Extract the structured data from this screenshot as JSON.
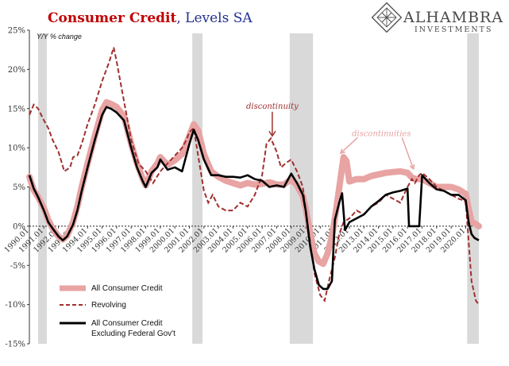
{
  "header": {
    "title_bold": "Consumer Credit",
    "title_rest": ", Levels SA",
    "title_bold_color": "#c00000",
    "title_rest_color": "#1f2f8f"
  },
  "logo": {
    "icon": "diamond-lattice-icon",
    "name": "ALHAMBRA",
    "tagline": "INVESTMENTS"
  },
  "chart_data": {
    "type": "line",
    "unit_label": "Y/Y % change",
    "ylim": [
      -15,
      25
    ],
    "y_ticks": [
      "25%",
      "20%",
      "15%",
      "10%",
      "5%",
      "0%",
      "-5%",
      "-10%",
      "-15%"
    ],
    "y_tick_values": [
      25,
      20,
      15,
      10,
      5,
      0,
      -5,
      -10,
      -15
    ],
    "xlim": [
      1990.0,
      2020.9
    ],
    "x_ticks": [
      "1990.01",
      "1991.01",
      "1992.01",
      "1993.01",
      "1994.01",
      "1995.01",
      "1996.01",
      "1997.01",
      "1998.01",
      "1999.01",
      "2000.01",
      "2001.01",
      "2002.01",
      "2003.01",
      "2004.01",
      "2005.01",
      "2006.01",
      "2007.01",
      "2008.01",
      "2009.01",
      "2010.01",
      "2011.01",
      "2012.01",
      "2013.01",
      "2014.01",
      "2015.01",
      "2016.01",
      "2017.01",
      "2018.01",
      "2019.01",
      "2020.01"
    ],
    "x_tick_values": [
      1990,
      1991,
      1992,
      1993,
      1994,
      1995,
      1996,
      1997,
      1998,
      1999,
      2000,
      2001,
      2002,
      2003,
      2004,
      2005,
      2006,
      2007,
      2008,
      2009,
      2010,
      2011,
      2012,
      2013,
      2014,
      2015,
      2016,
      2017,
      2018,
      2019,
      2020
    ],
    "recessions": [
      [
        1990.6,
        1991.2
      ],
      [
        2001.2,
        2001.9
      ],
      [
        2007.9,
        2009.5
      ],
      [
        2020.1,
        2020.9
      ]
    ],
    "legend_position": "bottom-left",
    "annotations": [
      {
        "text": "discontinuity",
        "x": 2006.7,
        "y": 15.0,
        "arrow_to": [
          2006.7,
          11.5
        ]
      },
      {
        "text": "discontinuities",
        "x": 2014.2,
        "y": 11.5,
        "arrow_to": [
          [
            2011.4,
            9.3
          ],
          [
            2016.4,
            7.3
          ]
        ]
      }
    ],
    "series": [
      {
        "name": "All Consumer Credit",
        "color": "#e8a3a3",
        "style": "thick",
        "points": [
          [
            1990.0,
            6.3
          ],
          [
            1990.3,
            4.6
          ],
          [
            1990.6,
            3.7
          ],
          [
            1991.0,
            2.3
          ],
          [
            1991.3,
            0.8
          ],
          [
            1991.6,
            -0.3
          ],
          [
            1992.0,
            -1.3
          ],
          [
            1992.3,
            -1.7
          ],
          [
            1992.6,
            -1.2
          ],
          [
            1993.0,
            0.5
          ],
          [
            1993.3,
            2.5
          ],
          [
            1993.6,
            5.0
          ],
          [
            1994.0,
            8.0
          ],
          [
            1994.5,
            11.5
          ],
          [
            1995.0,
            14.8
          ],
          [
            1995.3,
            15.8
          ],
          [
            1995.6,
            15.6
          ],
          [
            1996.0,
            15.2
          ],
          [
            1996.5,
            14.0
          ],
          [
            1997.0,
            10.5
          ],
          [
            1997.4,
            8.0
          ],
          [
            1997.8,
            6.0
          ],
          [
            1998.0,
            5.2
          ],
          [
            1998.4,
            7.0
          ],
          [
            1998.8,
            8.0
          ],
          [
            1999.0,
            8.8
          ],
          [
            1999.5,
            7.8
          ],
          [
            2000.0,
            8.4
          ],
          [
            2000.5,
            9.2
          ],
          [
            2001.0,
            11.5
          ],
          [
            2001.3,
            13.0
          ],
          [
            2001.6,
            12.2
          ],
          [
            2002.0,
            9.2
          ],
          [
            2002.5,
            7.0
          ],
          [
            2003.0,
            6.3
          ],
          [
            2003.5,
            5.8
          ],
          [
            2004.0,
            5.5
          ],
          [
            2004.5,
            5.2
          ],
          [
            2005.0,
            5.5
          ],
          [
            2005.5,
            5.3
          ],
          [
            2006.0,
            5.4
          ],
          [
            2006.5,
            5.6
          ],
          [
            2007.0,
            5.3
          ],
          [
            2007.5,
            5.3
          ],
          [
            2008.0,
            6.0
          ],
          [
            2008.4,
            5.2
          ],
          [
            2008.8,
            3.8
          ],
          [
            2009.0,
            2.3
          ],
          [
            2009.3,
            -0.8
          ],
          [
            2009.6,
            -3.5
          ],
          [
            2009.9,
            -4.5
          ],
          [
            2010.2,
            -4.8
          ],
          [
            2010.5,
            -3.5
          ],
          [
            2010.8,
            -1.3
          ],
          [
            2011.0,
            1.0
          ],
          [
            2011.2,
            3.5
          ],
          [
            2011.4,
            6.2
          ],
          [
            2011.6,
            8.8
          ],
          [
            2011.8,
            8.3
          ],
          [
            2012.0,
            5.7
          ],
          [
            2012.5,
            6.0
          ],
          [
            2013.0,
            6.0
          ],
          [
            2013.5,
            6.4
          ],
          [
            2014.0,
            6.6
          ],
          [
            2014.5,
            6.8
          ],
          [
            2015.0,
            6.9
          ],
          [
            2015.5,
            7.0
          ],
          [
            2016.0,
            6.8
          ],
          [
            2016.3,
            6.2
          ],
          [
            2016.6,
            6.0
          ],
          [
            2017.0,
            6.0
          ],
          [
            2017.5,
            5.5
          ],
          [
            2018.0,
            5.0
          ],
          [
            2018.5,
            5.0
          ],
          [
            2019.0,
            5.0
          ],
          [
            2019.5,
            4.7
          ],
          [
            2020.0,
            4.1
          ],
          [
            2020.2,
            2.2
          ],
          [
            2020.4,
            0.6
          ],
          [
            2020.9,
            0.0
          ]
        ]
      },
      {
        "name": "Revolving",
        "color": "#a03030",
        "style": "dashed",
        "points": [
          [
            1990.0,
            14.2
          ],
          [
            1990.3,
            15.5
          ],
          [
            1990.6,
            15.0
          ],
          [
            1991.0,
            13.5
          ],
          [
            1991.3,
            12.5
          ],
          [
            1991.6,
            11.0
          ],
          [
            1992.0,
            9.5
          ],
          [
            1992.4,
            7.0
          ],
          [
            1992.8,
            7.5
          ],
          [
            1993.0,
            8.8
          ],
          [
            1993.3,
            9.0
          ],
          [
            1993.6,
            10.5
          ],
          [
            1994.0,
            13.0
          ],
          [
            1994.5,
            15.5
          ],
          [
            1995.0,
            18.5
          ],
          [
            1995.5,
            21.0
          ],
          [
            1995.8,
            22.8
          ],
          [
            1996.0,
            21.0
          ],
          [
            1996.4,
            17.0
          ],
          [
            1996.8,
            13.0
          ],
          [
            1997.0,
            11.0
          ],
          [
            1997.5,
            8.0
          ],
          [
            1998.0,
            7.0
          ],
          [
            1998.5,
            5.5
          ],
          [
            1999.0,
            7.0
          ],
          [
            1999.5,
            8.0
          ],
          [
            2000.0,
            9.0
          ],
          [
            2000.5,
            10.0
          ],
          [
            2000.8,
            11.0
          ],
          [
            2001.0,
            12.0
          ],
          [
            2001.3,
            12.5
          ],
          [
            2001.6,
            9.0
          ],
          [
            2002.0,
            4.5
          ],
          [
            2002.3,
            3.0
          ],
          [
            2002.6,
            4.0
          ],
          [
            2003.0,
            2.5
          ],
          [
            2003.5,
            2.0
          ],
          [
            2004.0,
            2.0
          ],
          [
            2004.5,
            3.0
          ],
          [
            2005.0,
            2.5
          ],
          [
            2005.5,
            4.0
          ],
          [
            2006.0,
            6.5
          ],
          [
            2006.3,
            10.5
          ],
          [
            2006.6,
            11.2
          ],
          [
            2007.0,
            9.5
          ],
          [
            2007.3,
            7.5
          ],
          [
            2007.6,
            8.0
          ],
          [
            2008.0,
            8.5
          ],
          [
            2008.4,
            7.0
          ],
          [
            2008.8,
            5.0
          ],
          [
            2009.0,
            2.0
          ],
          [
            2009.3,
            -2.0
          ],
          [
            2009.6,
            -6.0
          ],
          [
            2010.0,
            -8.8
          ],
          [
            2010.3,
            -9.5
          ],
          [
            2010.6,
            -7.0
          ],
          [
            2011.0,
            -4.0
          ],
          [
            2011.3,
            -1.0
          ],
          [
            2011.6,
            0.5
          ],
          [
            2012.0,
            1.0
          ],
          [
            2012.5,
            2.0
          ],
          [
            2013.0,
            1.5
          ],
          [
            2013.5,
            2.5
          ],
          [
            2014.0,
            3.0
          ],
          [
            2014.5,
            4.0
          ],
          [
            2015.0,
            3.5
          ],
          [
            2015.5,
            3.0
          ],
          [
            2016.0,
            5.0
          ],
          [
            2016.3,
            6.0
          ],
          [
            2016.5,
            5.5
          ],
          [
            2016.8,
            6.5
          ],
          [
            2017.0,
            6.8
          ],
          [
            2017.5,
            6.0
          ],
          [
            2018.0,
            5.0
          ],
          [
            2018.5,
            4.5
          ],
          [
            2019.0,
            4.0
          ],
          [
            2019.5,
            3.5
          ],
          [
            2020.0,
            3.2
          ],
          [
            2020.2,
            -2.0
          ],
          [
            2020.4,
            -7.0
          ],
          [
            2020.7,
            -9.5
          ],
          [
            2020.9,
            -10.0
          ]
        ]
      },
      {
        "name": "All Consumer Credit Excluding Federal Gov't",
        "color": "#000000",
        "style": "solid",
        "points": [
          [
            1990.0,
            6.5
          ],
          [
            1990.3,
            4.8
          ],
          [
            1990.6,
            3.7
          ],
          [
            1991.0,
            2.0
          ],
          [
            1991.3,
            0.5
          ],
          [
            1991.6,
            -0.3
          ],
          [
            1992.0,
            -1.3
          ],
          [
            1992.3,
            -1.8
          ],
          [
            1992.6,
            -1.3
          ],
          [
            1993.0,
            0.2
          ],
          [
            1993.3,
            2.0
          ],
          [
            1993.6,
            4.5
          ],
          [
            1994.0,
            7.5
          ],
          [
            1994.5,
            11.0
          ],
          [
            1995.0,
            14.2
          ],
          [
            1995.3,
            15.2
          ],
          [
            1995.6,
            15.0
          ],
          [
            1996.0,
            14.5
          ],
          [
            1996.5,
            13.5
          ],
          [
            1997.0,
            10.0
          ],
          [
            1997.4,
            7.5
          ],
          [
            1997.8,
            5.7
          ],
          [
            1998.0,
            5.0
          ],
          [
            1998.4,
            6.8
          ],
          [
            1998.8,
            7.5
          ],
          [
            1999.0,
            8.5
          ],
          [
            1999.5,
            7.2
          ],
          [
            2000.0,
            7.5
          ],
          [
            2000.5,
            7.0
          ],
          [
            2001.0,
            10.5
          ],
          [
            2001.3,
            12.3
          ],
          [
            2001.6,
            11.0
          ],
          [
            2002.0,
            8.5
          ],
          [
            2002.5,
            6.5
          ],
          [
            2003.0,
            6.5
          ],
          [
            2003.5,
            6.3
          ],
          [
            2004.0,
            6.3
          ],
          [
            2004.5,
            6.2
          ],
          [
            2005.0,
            6.5
          ],
          [
            2005.5,
            6.0
          ],
          [
            2006.0,
            5.8
          ],
          [
            2006.5,
            5.0
          ],
          [
            2007.0,
            5.2
          ],
          [
            2007.5,
            5.0
          ],
          [
            2008.0,
            6.7
          ],
          [
            2008.4,
            5.5
          ],
          [
            2008.8,
            4.0
          ],
          [
            2009.0,
            2.0
          ],
          [
            2009.3,
            -2.5
          ],
          [
            2009.6,
            -5.5
          ],
          [
            2009.9,
            -7.5
          ],
          [
            2010.2,
            -8.0
          ],
          [
            2010.5,
            -8.0
          ],
          [
            2010.8,
            -7.0
          ],
          [
            2011.0,
            0.8
          ],
          [
            2011.3,
            3.0
          ],
          [
            2011.5,
            4.2
          ],
          [
            2011.7,
            -0.5
          ],
          [
            2012.0,
            0.5
          ],
          [
            2012.5,
            1.0
          ],
          [
            2013.0,
            1.5
          ],
          [
            2013.5,
            2.5
          ],
          [
            2014.0,
            3.2
          ],
          [
            2014.5,
            4.0
          ],
          [
            2015.0,
            4.3
          ],
          [
            2015.5,
            4.5
          ],
          [
            2016.0,
            4.8
          ],
          [
            2016.1,
            0.0
          ],
          [
            2016.5,
            0.0
          ],
          [
            2016.8,
            0.0
          ],
          [
            2017.0,
            6.5
          ],
          [
            2017.5,
            5.5
          ],
          [
            2018.0,
            4.7
          ],
          [
            2018.5,
            4.5
          ],
          [
            2019.0,
            4.0
          ],
          [
            2019.5,
            4.0
          ],
          [
            2020.0,
            3.3
          ],
          [
            2020.2,
            0.5
          ],
          [
            2020.4,
            -1.0
          ],
          [
            2020.6,
            -1.5
          ],
          [
            2020.9,
            -1.8
          ]
        ]
      }
    ]
  }
}
